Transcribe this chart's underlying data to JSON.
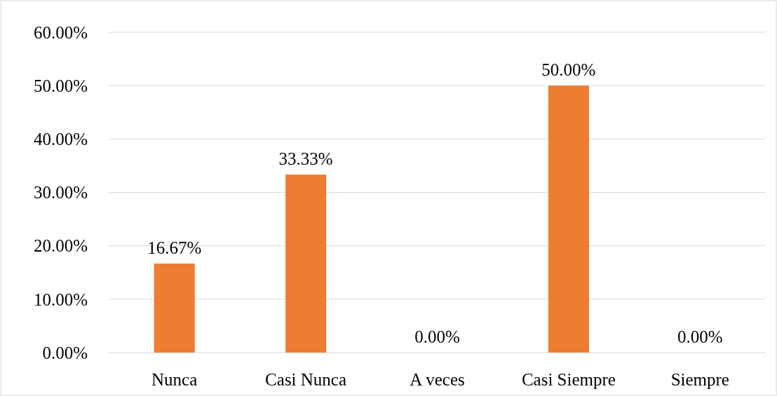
{
  "chart_data": {
    "type": "bar",
    "categories": [
      "Nunca",
      "Casi Nunca",
      "A veces",
      "Casi Siempre",
      "Siempre"
    ],
    "values": [
      16.67,
      33.33,
      0,
      50,
      0
    ],
    "value_labels": [
      "16.67%",
      "33.33%",
      "0.00%",
      "50.00%",
      "0.00%"
    ],
    "color": "#ed7d31",
    "ylim": [
      0,
      60
    ],
    "yticks": [
      {
        "value": 0,
        "label": "0.00%"
      },
      {
        "value": 10,
        "label": "10.00%"
      },
      {
        "value": 20,
        "label": "20.00%"
      },
      {
        "value": 30,
        "label": "30.00%"
      },
      {
        "value": 40,
        "label": "40.00%"
      },
      {
        "value": 50,
        "label": "50.00%"
      },
      {
        "value": 60,
        "label": "60.00%"
      }
    ],
    "grid": "y"
  }
}
